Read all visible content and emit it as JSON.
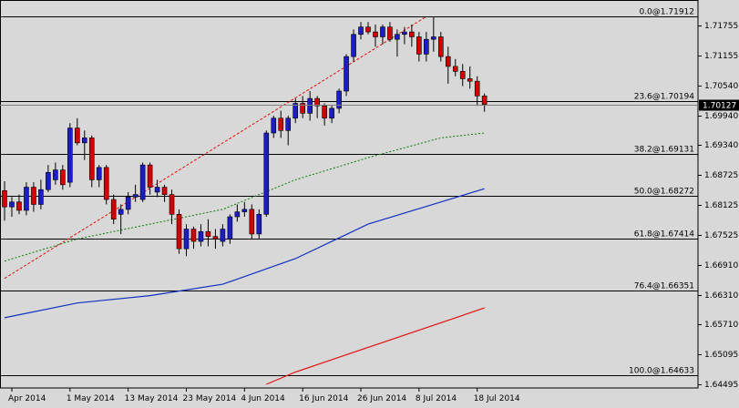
{
  "chart_data": {
    "type": "candlestick",
    "grid": false,
    "colors": {
      "background": "#d8d8d8",
      "bull": "#1c1cc8",
      "bear": "#d40000",
      "ma_short": "#0a7a0a",
      "ma_mid": "#1030c0",
      "ma_long": "#e01010",
      "trendline": "#e01010",
      "fib_line": "#000000",
      "price_box": "#000000"
    },
    "ylim": [
      1.6445,
      1.721
    ],
    "y_ticks": [
      "1.71755",
      "1.71155",
      "1.70540",
      "1.69940",
      "1.69340",
      "1.68725",
      "1.68125",
      "1.67525",
      "1.66910",
      "1.66310",
      "1.65710",
      "1.65095",
      "1.64495"
    ],
    "x_ticks": [
      {
        "label": "Apr 2014",
        "i": 1
      },
      {
        "label": "1 May 2014",
        "i": 9
      },
      {
        "label": "13 May 2014",
        "i": 17
      },
      {
        "label": "23 May 2014",
        "i": 25
      },
      {
        "label": "4 Jun 2014",
        "i": 33
      },
      {
        "label": "16 Jun 2014",
        "i": 41
      },
      {
        "label": "26 Jun 2014",
        "i": 49
      },
      {
        "label": "8 Jul 2014",
        "i": 57
      },
      {
        "label": "18 Jul 2014",
        "i": 65
      }
    ],
    "fib_levels": [
      {
        "label": "0.0@1.71912",
        "value": 1.71912
      },
      {
        "label": "23.6@1.70194",
        "value": 1.70194
      },
      {
        "label": "38.2@1.69131",
        "value": 1.69131
      },
      {
        "label": "50.0@1.68272",
        "value": 1.68272
      },
      {
        "label": "61.8@1.67414",
        "value": 1.67414
      },
      {
        "label": "76.4@1.66351",
        "value": 1.66351
      },
      {
        "label": "100.0@1.64633",
        "value": 1.64633
      }
    ],
    "current_price": {
      "label": "1.70127",
      "value": 1.70127
    },
    "candles": [
      [
        1.6838,
        1.6857,
        1.6777,
        1.6805
      ],
      [
        1.6805,
        1.6825,
        1.6785,
        1.6815
      ],
      [
        1.6815,
        1.683,
        1.679,
        1.6798
      ],
      [
        1.6798,
        1.6855,
        1.6788,
        1.6845
      ],
      [
        1.6845,
        1.6855,
        1.6795,
        1.681
      ],
      [
        1.681,
        1.686,
        1.68,
        1.684
      ],
      [
        1.684,
        1.689,
        1.6835,
        1.6875
      ],
      [
        1.686,
        1.6895,
        1.685,
        1.688
      ],
      [
        1.688,
        1.689,
        1.684,
        1.685
      ],
      [
        1.6855,
        1.6975,
        1.6845,
        1.6965
      ],
      [
        1.6965,
        1.6985,
        1.693,
        1.6935
      ],
      [
        1.6935,
        1.696,
        1.69,
        1.6945
      ],
      [
        1.6945,
        1.695,
        1.6845,
        1.686
      ],
      [
        1.686,
        1.689,
        1.6845,
        1.6885
      ],
      [
        1.6885,
        1.689,
        1.681,
        1.682
      ],
      [
        1.682,
        1.683,
        1.677,
        1.678
      ],
      [
        1.679,
        1.681,
        1.675,
        1.68
      ],
      [
        1.68,
        1.6835,
        1.679,
        1.6825
      ],
      [
        1.6825,
        1.685,
        1.6815,
        1.683
      ],
      [
        1.682,
        1.6895,
        1.6815,
        1.689
      ],
      [
        1.689,
        1.6895,
        1.683,
        1.6845
      ],
      [
        1.6835,
        1.686,
        1.6825,
        1.6845
      ],
      [
        1.6845,
        1.685,
        1.6815,
        1.683
      ],
      [
        1.683,
        1.684,
        1.677,
        1.679
      ],
      [
        1.679,
        1.68,
        1.671,
        1.672
      ],
      [
        1.672,
        1.677,
        1.6705,
        1.676
      ],
      [
        1.676,
        1.6765,
        1.672,
        1.6735
      ],
      [
        1.6735,
        1.677,
        1.6725,
        1.6755
      ],
      [
        1.6755,
        1.678,
        1.6725,
        1.6745
      ],
      [
        1.6745,
        1.676,
        1.672,
        1.674
      ],
      [
        1.6735,
        1.677,
        1.6725,
        1.676
      ],
      [
        1.674,
        1.679,
        1.673,
        1.6785
      ],
      [
        1.6785,
        1.681,
        1.6775,
        1.6795
      ],
      [
        1.6795,
        1.6815,
        1.6785,
        1.68
      ],
      [
        1.68,
        1.681,
        1.674,
        1.675
      ],
      [
        1.675,
        1.68,
        1.674,
        1.679
      ],
      [
        1.679,
        1.696,
        1.6785,
        1.6955
      ],
      [
        1.6955,
        1.699,
        1.6945,
        1.6985
      ],
      [
        1.6985,
        1.7,
        1.6945,
        1.696
      ],
      [
        1.696,
        1.699,
        1.693,
        1.6985
      ],
      [
        1.6985,
        1.7025,
        1.6975,
        1.7015
      ],
      [
        1.7015,
        1.703,
        1.6985,
        1.6995
      ],
      [
        1.6995,
        1.704,
        1.698,
        1.7025
      ],
      [
        1.7025,
        1.703,
        1.6985,
        1.701
      ],
      [
        1.701,
        1.7015,
        1.697,
        1.6985
      ],
      [
        1.6985,
        1.701,
        1.6975,
        1.7005
      ],
      [
        1.7005,
        1.7045,
        1.6995,
        1.704
      ],
      [
        1.704,
        1.7115,
        1.703,
        1.711
      ],
      [
        1.711,
        1.7165,
        1.71,
        1.7155
      ],
      [
        1.7155,
        1.718,
        1.7145,
        1.717
      ],
      [
        1.717,
        1.718,
        1.7155,
        1.716
      ],
      [
        1.716,
        1.7175,
        1.713,
        1.715
      ],
      [
        1.715,
        1.7175,
        1.7135,
        1.717
      ],
      [
        1.717,
        1.718,
        1.714,
        1.7145
      ],
      [
        1.7145,
        1.7165,
        1.711,
        1.7155
      ],
      [
        1.7155,
        1.717,
        1.7135,
        1.716
      ],
      [
        1.716,
        1.7175,
        1.713,
        1.715
      ],
      [
        1.715,
        1.716,
        1.71,
        1.7115
      ],
      [
        1.7115,
        1.716,
        1.71,
        1.7145
      ],
      [
        1.7145,
        1.7191,
        1.712,
        1.715
      ],
      [
        1.715,
        1.716,
        1.71,
        1.711
      ],
      [
        1.711,
        1.713,
        1.7055,
        1.709
      ],
      [
        1.709,
        1.7105,
        1.707,
        1.708
      ],
      [
        1.708,
        1.7095,
        1.705,
        1.7065
      ],
      [
        1.7065,
        1.709,
        1.7045,
        1.706
      ],
      [
        1.706,
        1.707,
        1.701,
        1.703
      ],
      [
        1.703,
        1.7035,
        1.6998,
        1.7013
      ]
    ],
    "ma_short": [
      [
        0,
        1.6695
      ],
      [
        10,
        1.674
      ],
      [
        20,
        1.677
      ],
      [
        30,
        1.68
      ],
      [
        40,
        1.686
      ],
      [
        50,
        1.6905
      ],
      [
        60,
        1.6945
      ],
      [
        66,
        1.6955
      ]
    ],
    "ma_mid": [
      [
        0,
        1.658
      ],
      [
        10,
        1.661
      ],
      [
        20,
        1.6625
      ],
      [
        30,
        1.6648
      ],
      [
        40,
        1.67
      ],
      [
        50,
        1.677
      ],
      [
        60,
        1.6815
      ],
      [
        66,
        1.6842
      ]
    ],
    "ma_long": [
      [
        36,
        1.6445
      ],
      [
        40,
        1.647
      ],
      [
        50,
        1.652
      ],
      [
        60,
        1.657
      ],
      [
        66,
        1.66
      ]
    ],
    "trendline": [
      [
        0,
        1.666
      ],
      [
        58,
        1.7191
      ]
    ]
  }
}
